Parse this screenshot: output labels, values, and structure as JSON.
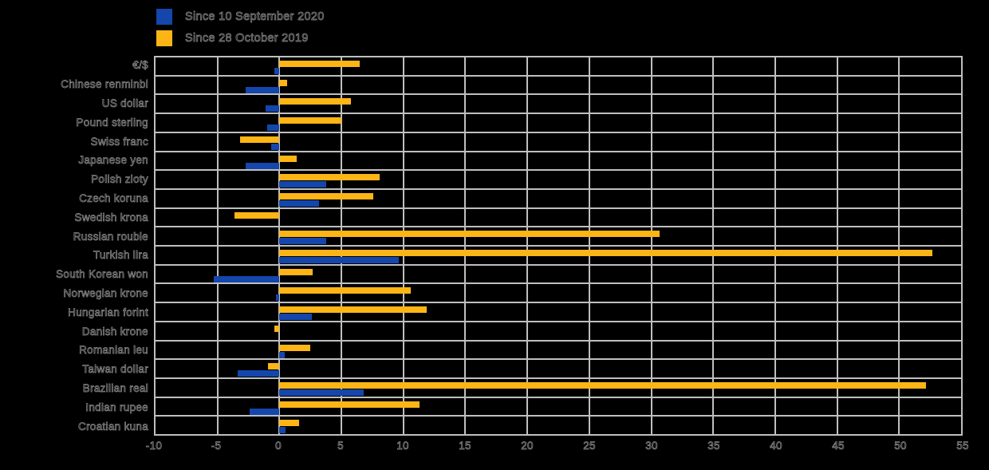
{
  "background_color": "#000000",
  "grid_color": "#bfbfbf",
  "chart_data": {
    "type": "bar",
    "orientation": "horizontal",
    "title": "",
    "xlabel": "",
    "ylabel": "",
    "xlim": [
      -10,
      55
    ],
    "xticks": [
      -10,
      -5,
      0,
      5,
      10,
      15,
      20,
      25,
      30,
      35,
      40,
      45,
      50,
      55
    ],
    "grid": true,
    "legend_position": "top-left",
    "categories": [
      "€/$",
      "Chinese renminbi",
      "US dollar",
      "Pound sterling",
      "Swiss franc",
      "Japanese yen",
      "Polish zloty",
      "Czech koruna",
      "Swedish krona",
      "Russian rouble",
      "Turkish lira",
      "South Korean won",
      "Norwegian krone",
      "Hungarian forint",
      "Danish krone",
      "Romanian leu",
      "Taiwan dollar",
      "Brazilian real",
      "Indian rupee",
      "Croatian kuna"
    ],
    "series": [
      {
        "name": "Since 10 September 2020",
        "color": "#1446AB",
        "bar_slot": "bottom",
        "values": [
          -0.4,
          -2.7,
          -1.1,
          -1.0,
          -0.7,
          -2.7,
          3.8,
          3.2,
          0,
          3.8,
          9.6,
          -5.3,
          -0.3,
          2.6,
          0,
          0.4,
          -3.4,
          6.8,
          -2.4,
          0.5
        ]
      },
      {
        "name": "Since 28 October 2019",
        "color": "#FDB515",
        "bar_slot": "top",
        "values": [
          6.5,
          0.6,
          5.8,
          5.0,
          -3.2,
          1.4,
          8.1,
          7.6,
          -3.6,
          30.7,
          52.7,
          2.7,
          10.6,
          11.9,
          -0.4,
          2.5,
          -0.9,
          52.2,
          11.3,
          1.6
        ]
      }
    ]
  }
}
